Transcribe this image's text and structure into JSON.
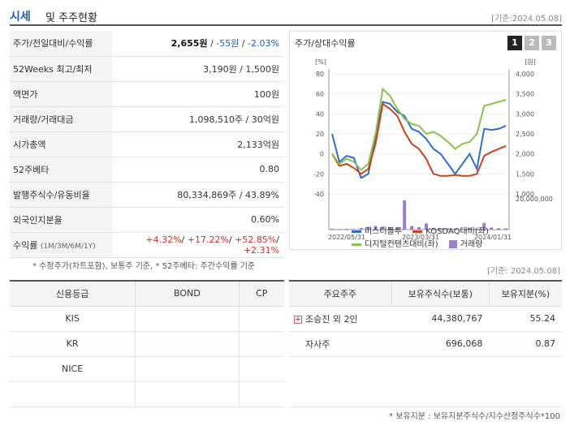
{
  "header": {
    "title_main": "시세",
    "title_sub": "및 주주현황",
    "date": "[기준:2024.05.08]"
  },
  "quote": {
    "price_label": "주가/전일대비/수익률",
    "price": "2,655원",
    "change": "-55원",
    "change_pct": "-2.03%",
    "w52_label": "52Weeks 최고/최저",
    "w52_value": "3,190원 / 1,500원",
    "par_label": "액면가",
    "par_value": "100원",
    "volume_label": "거래량/거래대금",
    "volume_value": "1,098,510주 / 30억원",
    "mcap_label": "시가총액",
    "mcap_value": "2,133억원",
    "beta_label": "52주베타",
    "beta_value": "0.80",
    "shares_label": "발행주식수/유동비율",
    "shares_value": "80,334,869주 / 43.89%",
    "foreign_label": "외국인지분율",
    "foreign_value": "0.60%",
    "return_label": "수익률",
    "return_sub": "(1M/3M/6M/1Y)",
    "return_1m": "+4.32%",
    "return_3m": "+17.22%",
    "return_6m": "+52.85%",
    "return_1y": "+2.31%"
  },
  "note1": "* 수정주가(차트포함), 보통주 기준, * 52주베타: 주간수익률 기준",
  "date2": "[기준: 2024.05.08]",
  "chart_panel": {
    "title": "주가/상대수익률",
    "tabs": [
      "1",
      "2",
      "3"
    ]
  },
  "chart_data": {
    "type": "line",
    "left_axis_unit": "[%]",
    "right_axis_unit": "[원]",
    "left_ticks": [
      80,
      60,
      40,
      20,
      0,
      -20,
      -40
    ],
    "ylim_left": [
      -40,
      80
    ],
    "right_ticks": [
      "4,000",
      "3,500",
      "3,000",
      "2,500",
      "2,000",
      "1,500",
      "1,000"
    ],
    "ylim_right": [
      1000,
      4000
    ],
    "volume_tick": "20,000,000",
    "x_ticks": [
      "2022/05/31",
      "2023/03/31",
      "2024/01/31"
    ],
    "series": [
      {
        "name": "미스터블루",
        "color": "#2f6fc9",
        "values": [
          20,
          -8,
          -2,
          -4,
          -24,
          -20,
          15,
          52,
          50,
          42,
          38,
          25,
          22,
          15,
          5,
          0,
          -10,
          -20,
          -10,
          0,
          -15,
          25,
          24,
          25,
          28
        ]
      },
      {
        "name": "KOSDAQ대비(좌)",
        "color": "#d0401a",
        "values": [
          0,
          -12,
          -10,
          -14,
          -20,
          -15,
          10,
          50,
          45,
          38,
          22,
          10,
          5,
          -5,
          -20,
          -22,
          -22,
          -21,
          -22,
          -22,
          -20,
          -2,
          2,
          5,
          8
        ]
      },
      {
        "name": "디지털컨텐츠대비(좌)",
        "color": "#8bc24a",
        "values": [
          0,
          -10,
          -5,
          -8,
          -16,
          -10,
          20,
          65,
          58,
          45,
          35,
          30,
          28,
          20,
          22,
          18,
          12,
          5,
          10,
          12,
          20,
          48,
          50,
          52,
          54
        ]
      }
    ],
    "volume_series": {
      "name": "거래량",
      "color": "#9b7fd6",
      "values": [
        0.03,
        0.02,
        0.03,
        0.02,
        0.05,
        0.09,
        0.12,
        0.1,
        0.08,
        0.06,
        0.95,
        0.12,
        0.08,
        0.2,
        0.05,
        0.03,
        0.04,
        0.03,
        0.02,
        0.05,
        0.03,
        0.22,
        0.07,
        0.05,
        0.04
      ]
    },
    "legend": [
      "미스터블루",
      "KOSDAQ대비(좌)",
      "디지털컨텐츠대비(좌)",
      "거래량"
    ]
  },
  "credit": {
    "headers": [
      "신용등급",
      "BOND",
      "CP"
    ],
    "rows": [
      [
        "KIS",
        "",
        ""
      ],
      [
        "KR",
        "",
        ""
      ],
      [
        "NICE",
        "",
        ""
      ]
    ]
  },
  "holders": {
    "headers": [
      "주요주주",
      "보유주식수(보통)",
      "보유지분(%)"
    ],
    "rows": [
      {
        "name": "조승진 외 2인",
        "shares": "44,380,767",
        "pct": "55.24"
      },
      {
        "name": "자사주",
        "shares": "696,068",
        "pct": "0.87"
      }
    ]
  },
  "note2": "* 보유지분 : 보유지분주식수/지수산정주식수*100"
}
